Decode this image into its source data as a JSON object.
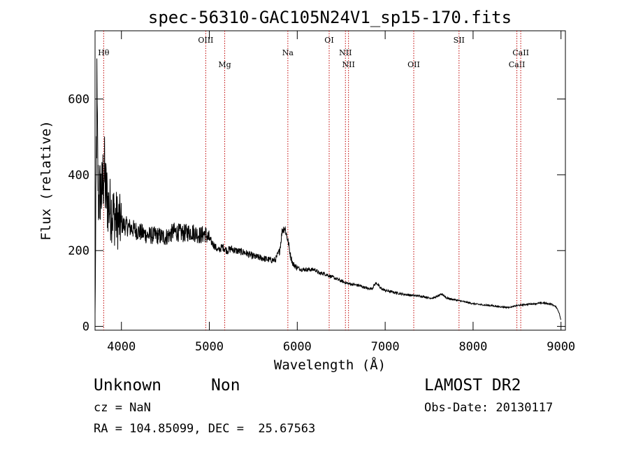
{
  "chart_data": {
    "type": "line",
    "title": "spec-56310-GAC105N24V1_sp15-170.fits",
    "xlabel": "Wavelength (Å)",
    "ylabel": "Flux (relative)",
    "xlim": [
      3700,
      9050
    ],
    "ylim": [
      -10,
      780
    ],
    "x_ticks": [
      4000,
      5000,
      6000,
      7000,
      8000,
      9000
    ],
    "y_ticks": [
      0,
      200,
      400,
      600
    ],
    "grid": false,
    "line_color": "#000000",
    "marker_color": "#c00000",
    "series": [
      {
        "x": [
          3700,
          3720,
          3730,
          3740,
          3760,
          3780,
          3800,
          3820,
          3850,
          3900,
          3950,
          4000,
          4050,
          4100,
          4150,
          4200,
          4300,
          4400,
          4500,
          4600,
          4700,
          4800,
          4900,
          4950,
          5000,
          5050,
          5100,
          5150,
          5200,
          5250,
          5300,
          5400,
          5500,
          5600,
          5700,
          5750,
          5800,
          5830,
          5860,
          5880,
          5900,
          5920,
          5950,
          6000,
          6050,
          6100,
          6200,
          6250,
          6300,
          6350,
          6400,
          6450,
          6500,
          6550,
          6600,
          6650,
          6700,
          6800,
          6850,
          6880,
          6900,
          6950,
          7000,
          7100,
          7200,
          7300,
          7400,
          7450,
          7500,
          7550,
          7600,
          7650,
          7700,
          7750,
          7800,
          7900,
          8000,
          8100,
          8200,
          8300,
          8400,
          8450,
          8500,
          8600,
          8700,
          8800,
          8900,
          8950,
          8980,
          9000
        ],
        "y": [
          30,
          600,
          420,
          330,
          360,
          350,
          420,
          360,
          320,
          300,
          280,
          270,
          265,
          260,
          255,
          250,
          240,
          240,
          235,
          250,
          245,
          250,
          240,
          245,
          230,
          215,
          200,
          210,
          200,
          205,
          200,
          195,
          185,
          180,
          175,
          175,
          200,
          255,
          260,
          240,
          220,
          190,
          165,
          155,
          150,
          150,
          150,
          140,
          140,
          135,
          130,
          125,
          120,
          115,
          112,
          110,
          108,
          100,
          100,
          110,
          115,
          100,
          95,
          90,
          85,
          82,
          80,
          78,
          75,
          75,
          80,
          85,
          75,
          72,
          70,
          65,
          60,
          57,
          55,
          52,
          50,
          52,
          55,
          58,
          60,
          62,
          58,
          50,
          35,
          15
        ]
      }
    ],
    "lines": [
      {
        "label": "Hθ",
        "x": 3798,
        "row": 2
      },
      {
        "label": "OIII",
        "x": 4959,
        "row": 1
      },
      {
        "label": "Mg",
        "x": 5175,
        "row": 3
      },
      {
        "label": "Na",
        "x": 5893,
        "row": 2
      },
      {
        "label": "OI",
        "x": 6363,
        "row": 1
      },
      {
        "label": "NII",
        "x": 6548,
        "row": 2
      },
      {
        "label": "NII",
        "x": 6583,
        "row": 3
      },
      {
        "label": "OII",
        "x": 7325,
        "row": 3
      },
      {
        "label": "SII",
        "x": 7840,
        "row": 1
      },
      {
        "label": "CaII",
        "x": 8498,
        "row": 3
      },
      {
        "label": "CaII",
        "x": 8542,
        "row": 2
      }
    ]
  },
  "footer": {
    "class": "Unknown",
    "subclass": "Non",
    "survey": "LAMOST DR2",
    "cz": "cz = NaN",
    "obs_date": "Obs-Date: 20130117",
    "radec": "RA = 104.85099, DEC =  25.67563"
  }
}
